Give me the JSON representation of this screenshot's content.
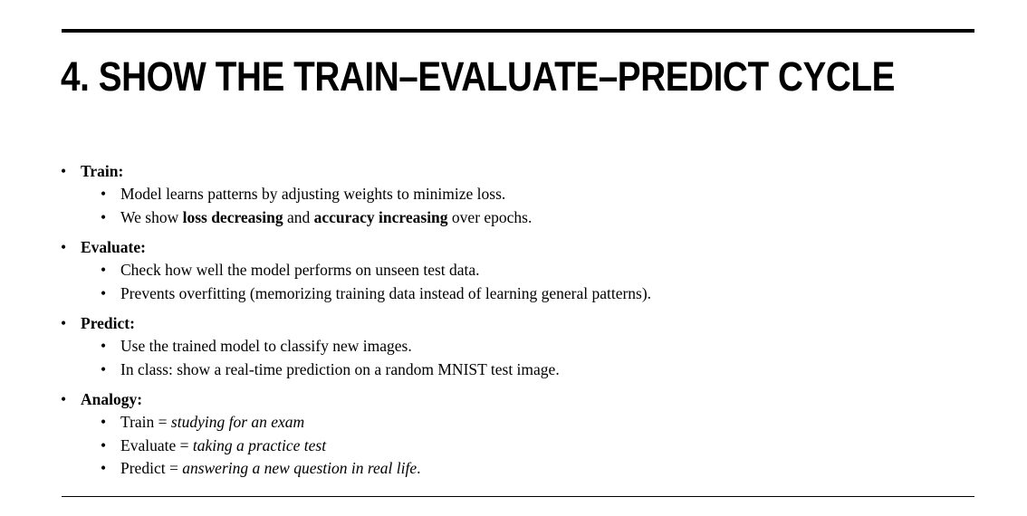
{
  "slide": {
    "title": "4. SHOW THE TRAIN–EVALUATE–PREDICT CYCLE",
    "bullet_glyph": "•",
    "sections": [
      {
        "heading": "Train:",
        "items": [
          {
            "text": "Model learns patterns by adjusting weights to minimize loss."
          },
          {
            "pre": "We show ",
            "bold1": "loss decreasing",
            "mid": " and ",
            "bold2": "accuracy increasing",
            "post": " over epochs."
          }
        ]
      },
      {
        "heading": "Evaluate:",
        "items": [
          {
            "text": "Check how well the model performs on unseen test data."
          },
          {
            "text": "Prevents overfitting (memorizing training data instead of learning general patterns)."
          }
        ]
      },
      {
        "heading": "Predict:",
        "items": [
          {
            "text": "Use the trained model to classify new images."
          },
          {
            "text": "In class: show a real-time prediction on a random MNIST test image."
          }
        ]
      },
      {
        "heading": "Analogy:",
        "items": [
          {
            "pre": "Train = ",
            "em": "studying for an exam",
            "post": ""
          },
          {
            "pre": "Evaluate = ",
            "em": "taking a practice test",
            "post": ""
          },
          {
            "pre": "Predict = ",
            "em": "answering a new question in real life",
            "post": "."
          }
        ]
      }
    ]
  }
}
